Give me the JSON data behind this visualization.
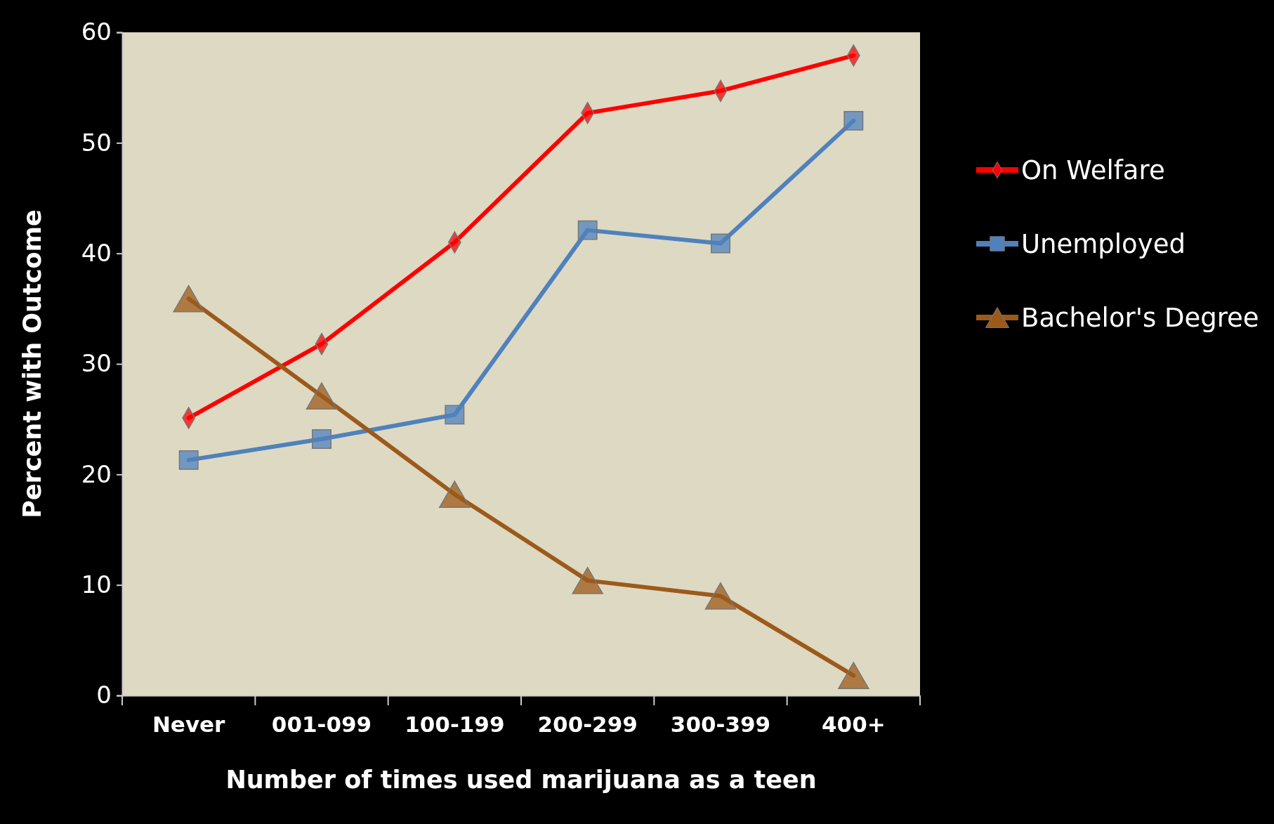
{
  "chart_data": {
    "type": "line",
    "xlabel": "Number of times used marijuana as a teen",
    "ylabel": "Percent with Outcome",
    "categories": [
      "Never",
      "001-099",
      "100-199",
      "200-299",
      "300-399",
      "400+"
    ],
    "ylim": [
      0,
      60
    ],
    "yticks": [
      0,
      10,
      20,
      30,
      40,
      50,
      60
    ],
    "grid": false,
    "legend": "right",
    "series": [
      {
        "name": "On Welfare",
        "color": "#ff0000",
        "marker": "diamond",
        "values": [
          25.1,
          31.8,
          41.0,
          52.7,
          54.7,
          57.9
        ]
      },
      {
        "name": "Unemployed",
        "color": "#4f81bd",
        "marker": "square",
        "values": [
          21.3,
          23.2,
          25.4,
          42.1,
          40.9,
          52.0
        ]
      },
      {
        "name": "Bachelor's Degree",
        "color": "#9c5a1a",
        "marker": "triangle",
        "values": [
          35.9,
          27.1,
          18.2,
          10.4,
          9.0,
          1.8
        ]
      }
    ]
  }
}
